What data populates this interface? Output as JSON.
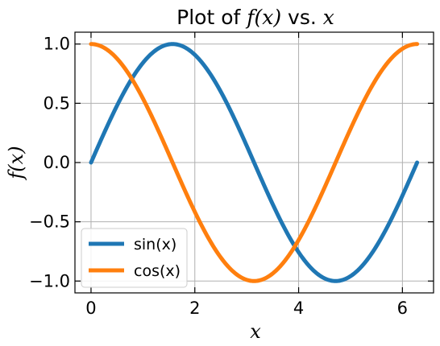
{
  "chart_data": {
    "type": "line",
    "title": {
      "prefix": "Plot of ",
      "fx": "f(x)",
      "middle": " vs. ",
      "x": "x"
    },
    "xlabel": "x",
    "ylabel": "f(x)",
    "xlim": [
      -0.31,
      6.6
    ],
    "ylim": [
      -1.1,
      1.1
    ],
    "xticks": [
      0,
      2,
      4,
      6
    ],
    "yticks": [
      -1.0,
      -0.5,
      0.0,
      0.5,
      1.0
    ],
    "xtick_labels": [
      "0",
      "2",
      "4",
      "6"
    ],
    "ytick_labels": [
      "−1.0",
      "−0.5",
      "0.0",
      "0.5",
      "1.0"
    ],
    "grid": true,
    "legend_position": "lower-left",
    "x_range": [
      0,
      6.2832
    ],
    "series": [
      {
        "name": "sin(x)",
        "function": "sin",
        "color": "#1f77b4"
      },
      {
        "name": "cos(x)",
        "function": "cos",
        "color": "#ff7f0e"
      }
    ]
  }
}
